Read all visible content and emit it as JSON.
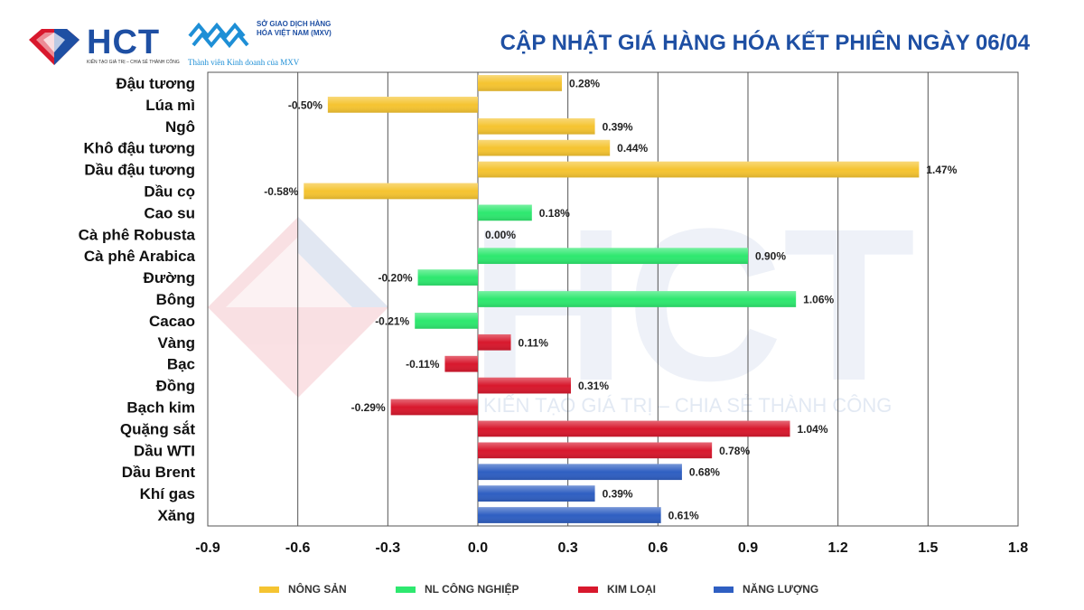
{
  "header": {
    "brand": "HCT",
    "brand_tagline": "KIẾN TẠO GIÁ TRỊ – CHIA SẺ THÀNH CÔNG",
    "mxv_name": "SỞ GIAO DỊCH HÀNG HÓA VIỆT NAM (MXV)",
    "mxv_member": "Thành viên Kinh doanh của MXV",
    "title": "CẬP NHẬT GIÁ HÀNG HÓA KẾT PHIÊN NGÀY 06/04"
  },
  "watermark": {
    "word": "HCT",
    "tagline": "KIẾN TẠO GIÁ TRỊ – CHIA SẺ THÀNH CÔNG"
  },
  "colors": {
    "nong_san": "#f5c431",
    "nl_cong_nghiep": "#2ee86f",
    "kim_loai": "#d8182d",
    "nang_luong": "#2f5fc2",
    "title": "#1e4fa3"
  },
  "chart_data": {
    "type": "bar",
    "orientation": "horizontal",
    "title": "CẬP NHẬT GIÁ HÀNG HÓA KẾT PHIÊN NGÀY 06/04",
    "xlim": [
      -0.9,
      1.8
    ],
    "xticks": [
      "-0.9",
      "-0.6",
      "-0.3",
      "0.0",
      "0.3",
      "0.6",
      "0.9",
      "1.2",
      "1.5",
      "1.8"
    ],
    "xtick_values": [
      -0.9,
      -0.6,
      -0.3,
      0.0,
      0.3,
      0.6,
      0.9,
      1.2,
      1.5,
      1.8
    ],
    "grid": "vertical",
    "legend_position": "bottom",
    "categories": [
      {
        "name": "Đậu tương",
        "value": 0.28,
        "label": "0.28%",
        "group": "nong_san"
      },
      {
        "name": "Lúa mì",
        "value": -0.5,
        "label": "-0.50%",
        "group": "nong_san"
      },
      {
        "name": "Ngô",
        "value": 0.39,
        "label": "0.39%",
        "group": "nong_san"
      },
      {
        "name": "Khô đậu tương",
        "value": 0.44,
        "label": "0.44%",
        "group": "nong_san"
      },
      {
        "name": "Dầu đậu tương",
        "value": 1.47,
        "label": "1.47%",
        "group": "nong_san"
      },
      {
        "name": "Dầu cọ",
        "value": -0.58,
        "label": "-0.58%",
        "group": "nong_san"
      },
      {
        "name": "Cao su",
        "value": 0.18,
        "label": "0.18%",
        "group": "nl_cong_nghiep"
      },
      {
        "name": "Cà phê Robusta",
        "value": 0.0,
        "label": "0.00%",
        "group": "nl_cong_nghiep"
      },
      {
        "name": "Cà phê Arabica",
        "value": 0.9,
        "label": "0.90%",
        "group": "nl_cong_nghiep"
      },
      {
        "name": "Đường",
        "value": -0.2,
        "label": "-0.20%",
        "group": "nl_cong_nghiep"
      },
      {
        "name": "Bông",
        "value": 1.06,
        "label": "1.06%",
        "group": "nl_cong_nghiep"
      },
      {
        "name": "Cacao",
        "value": -0.21,
        "label": "-0.21%",
        "group": "nl_cong_nghiep"
      },
      {
        "name": "Vàng",
        "value": 0.11,
        "label": "0.11%",
        "group": "kim_loai"
      },
      {
        "name": "Bạc",
        "value": -0.11,
        "label": "-0.11%",
        "group": "kim_loai"
      },
      {
        "name": "Đồng",
        "value": 0.31,
        "label": "0.31%",
        "group": "kim_loai"
      },
      {
        "name": "Bạch kim",
        "value": -0.29,
        "label": "-0.29%",
        "group": "kim_loai"
      },
      {
        "name": "Quặng sắt",
        "value": 1.04,
        "label": "1.04%",
        "group": "kim_loai"
      },
      {
        "name": "Dầu WTI",
        "value": 0.78,
        "label": "0.78%",
        "group": "kim_loai"
      },
      {
        "name": "Dầu Brent",
        "value": 0.68,
        "label": "0.68%",
        "group": "nang_luong"
      },
      {
        "name": "Khí gas",
        "value": 0.39,
        "label": "0.39%",
        "group": "nang_luong"
      },
      {
        "name": "Xăng",
        "value": 0.61,
        "label": "0.61%",
        "group": "nang_luong"
      }
    ],
    "legend": [
      {
        "key": "nong_san",
        "label": "NÔNG SẢN"
      },
      {
        "key": "nl_cong_nghiep",
        "label": "NL CÔNG NGHIỆP"
      },
      {
        "key": "kim_loai",
        "label": "KIM LOẠI"
      },
      {
        "key": "nang_luong",
        "label": "NĂNG LƯỢNG"
      }
    ]
  }
}
